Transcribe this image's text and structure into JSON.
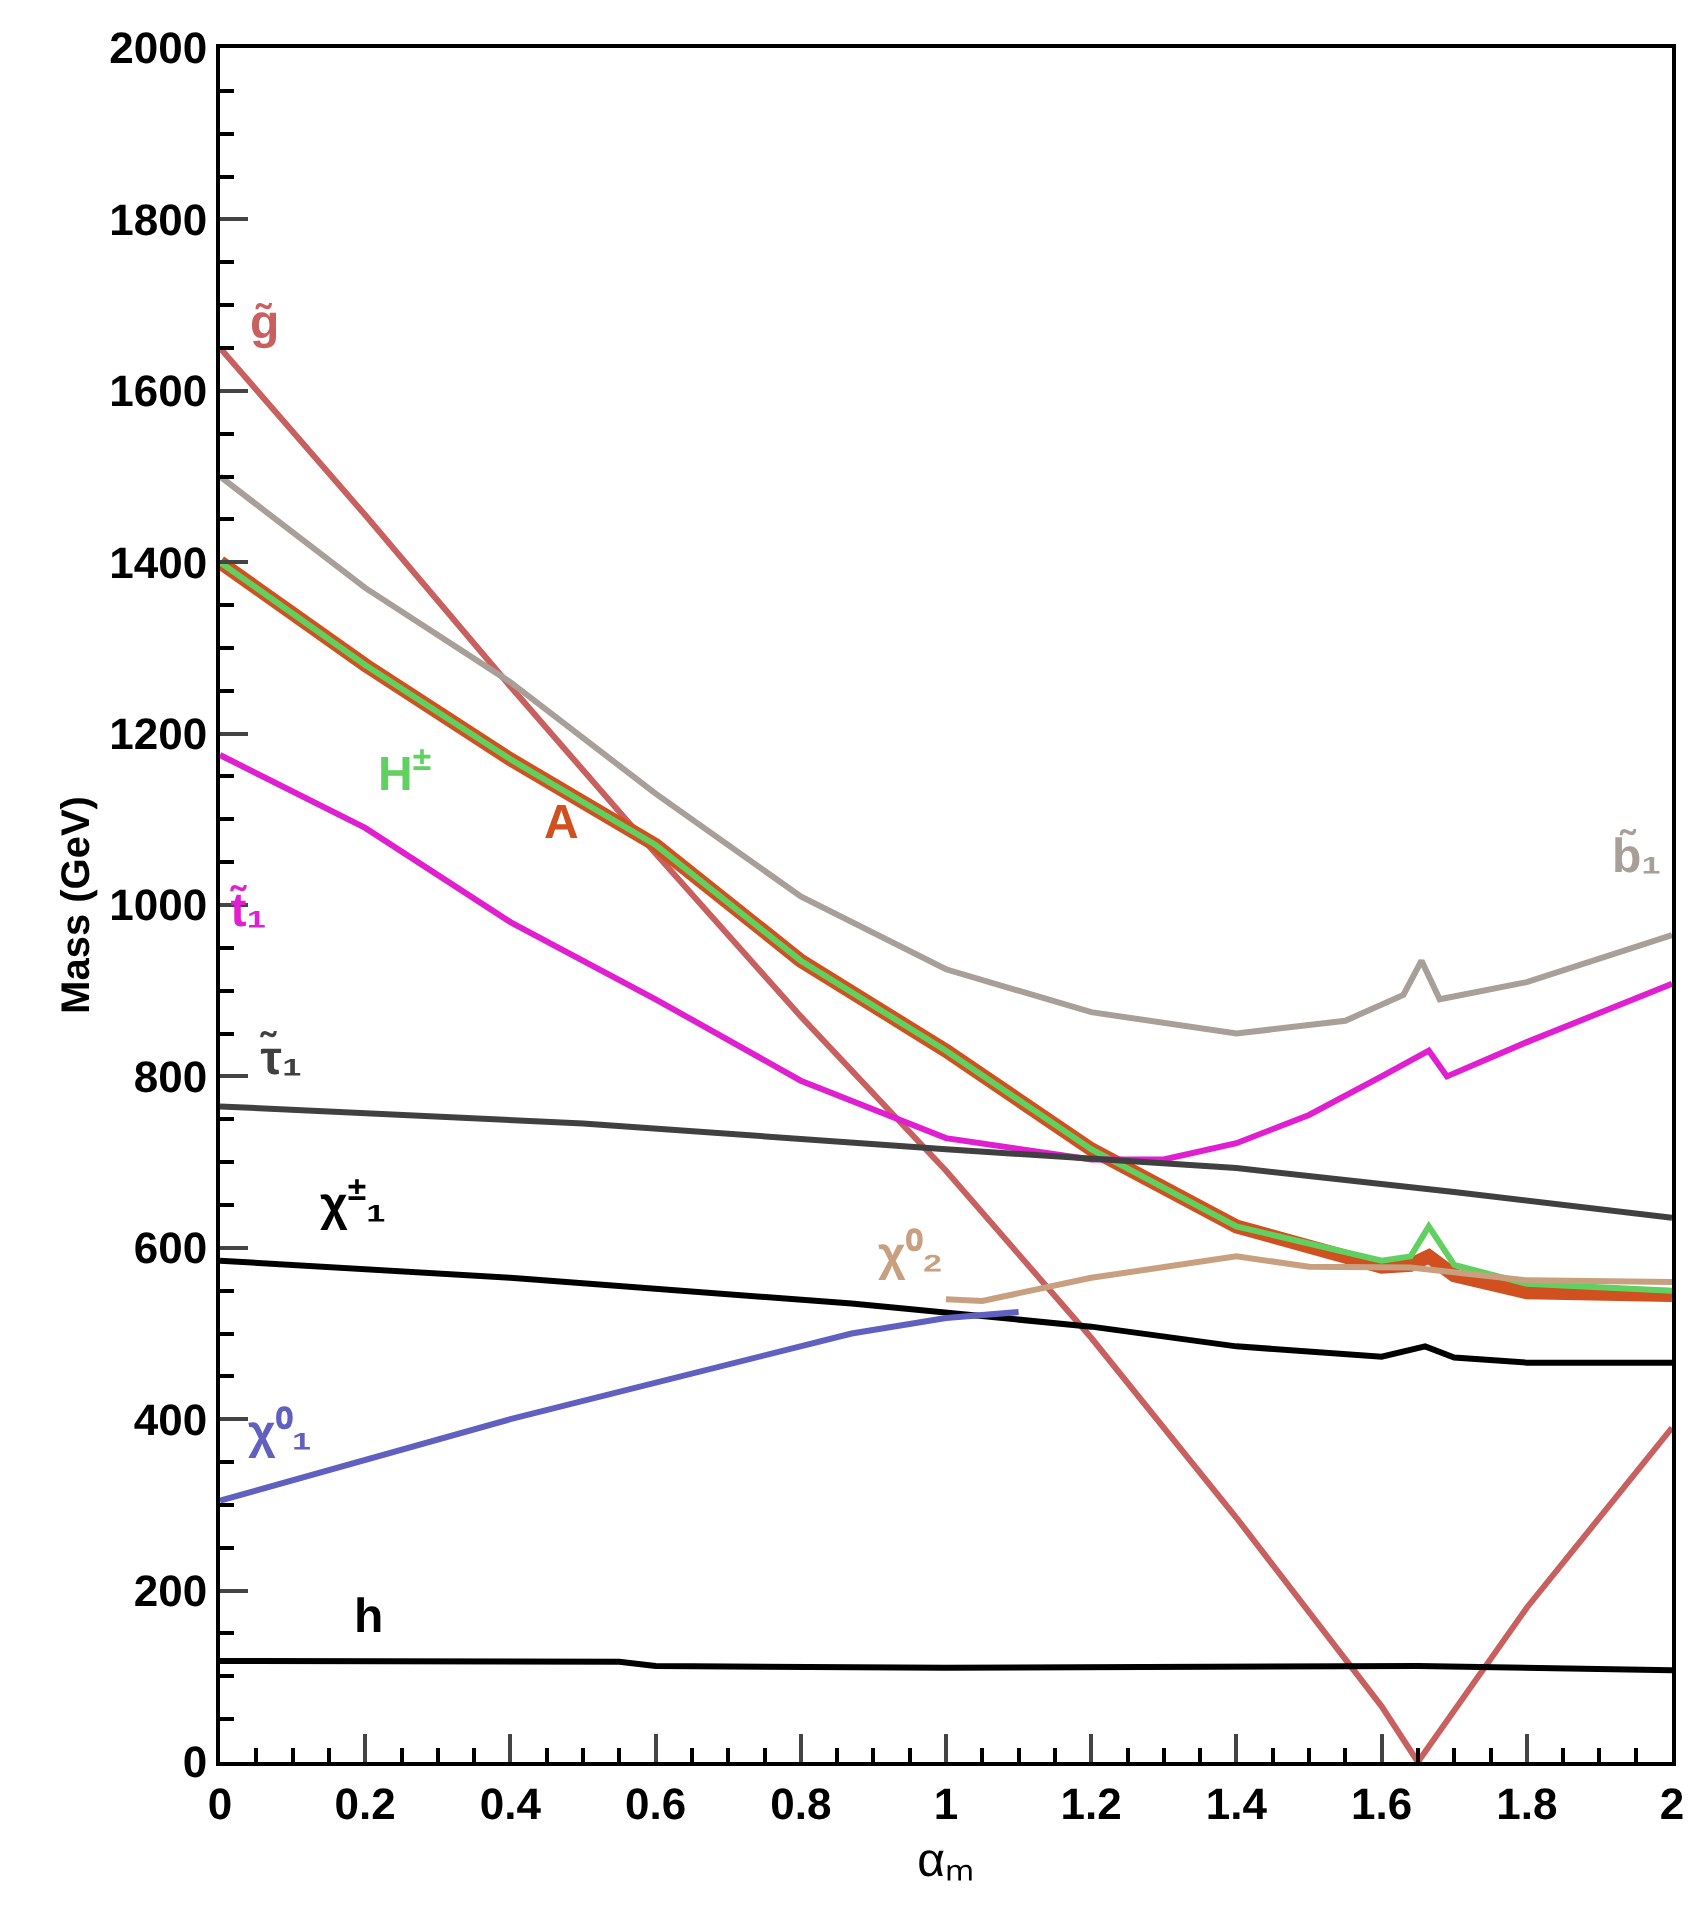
{
  "chart_data": {
    "type": "line",
    "xlabel": "αₘ",
    "ylabel": "Mass (GeV)",
    "xlim": [
      0,
      2
    ],
    "ylim": [
      0,
      2000
    ],
    "xticks": [
      0,
      {
        "value": 0.05,
        "label": null
      },
      {
        "value": 0.1,
        "label": null
      },
      {
        "value": 0.15,
        "label": null
      },
      0.2,
      {
        "value": 0.25,
        "label": null
      },
      {
        "value": 0.3,
        "label": null
      },
      {
        "value": 0.35,
        "label": null
      },
      0.4,
      {
        "value": 0.45,
        "label": null
      },
      {
        "value": 0.5,
        "label": null
      },
      {
        "value": 0.55,
        "label": null
      },
      0.6,
      {
        "value": 0.65,
        "label": null
      },
      {
        "value": 0.7,
        "label": null
      },
      {
        "value": 0.75,
        "label": null
      },
      0.8,
      {
        "value": 0.85,
        "label": null
      },
      {
        "value": 0.9,
        "label": null
      },
      {
        "value": 0.95,
        "label": null
      },
      1,
      {
        "value": 1.05,
        "label": null
      },
      {
        "value": 1.1,
        "label": null
      },
      {
        "value": 1.15,
        "label": null
      },
      1.2,
      {
        "value": 1.25,
        "label": null
      },
      {
        "value": 1.3,
        "label": null
      },
      {
        "value": 1.35,
        "label": null
      },
      1.4,
      {
        "value": 1.45,
        "label": null
      },
      {
        "value": 1.5,
        "label": null
      },
      {
        "value": 1.55,
        "label": null
      },
      1.6,
      {
        "value": 1.65,
        "label": null
      },
      {
        "value": 1.7,
        "label": null
      },
      {
        "value": 1.75,
        "label": null
      },
      1.8,
      {
        "value": 1.85,
        "label": null
      },
      {
        "value": 1.9,
        "label": null
      },
      {
        "value": 1.95,
        "label": null
      },
      2
    ],
    "yticks": [
      0,
      {
        "value": 50,
        "label": null
      },
      {
        "value": 100,
        "label": null
      },
      {
        "value": 150,
        "label": null
      },
      200,
      {
        "value": 250,
        "label": null
      },
      {
        "value": 300,
        "label": null
      },
      {
        "value": 350,
        "label": null
      },
      400,
      {
        "value": 450,
        "label": null
      },
      {
        "value": 500,
        "label": null
      },
      {
        "value": 550,
        "label": null
      },
      600,
      {
        "value": 650,
        "label": null
      },
      {
        "value": 700,
        "label": null
      },
      {
        "value": 750,
        "label": null
      },
      800,
      {
        "value": 850,
        "label": null
      },
      {
        "value": 900,
        "label": null
      },
      {
        "value": 950,
        "label": null
      },
      1000,
      {
        "value": 1050,
        "label": null
      },
      {
        "value": 1100,
        "label": null
      },
      {
        "value": 1150,
        "label": null
      },
      1200,
      {
        "value": 1250,
        "label": null
      },
      {
        "value": 1300,
        "label": null
      },
      {
        "value": 1350,
        "label": null
      },
      1400,
      {
        "value": 1450,
        "label": null
      },
      {
        "value": 1500,
        "label": null
      },
      {
        "value": 1550,
        "label": null
      },
      1600,
      {
        "value": 1650,
        "label": null
      },
      {
        "value": 1700,
        "label": null
      },
      {
        "value": 1750,
        "label": null
      },
      1800,
      {
        "value": 1850,
        "label": null
      },
      {
        "value": 1900,
        "label": null
      },
      {
        "value": 1950,
        "label": null
      },
      2000
    ],
    "legend": false,
    "marker": "none",
    "line_style": "solid",
    "series": [
      {
        "name": "g̃",
        "color": "#c86060",
        "x": [
          0,
          0.2,
          0.4,
          0.6,
          0.8,
          1.0,
          1.2,
          1.4,
          1.6,
          1.65,
          1.8,
          2.0
        ],
        "values": [
          1650,
          1455,
          1255,
          1060,
          870,
          690,
          495,
          285,
          65,
          0,
          180,
          390
        ]
      },
      {
        "name": "b̃₁",
        "color": "#a8a098",
        "x": [
          0,
          0.2,
          0.4,
          0.6,
          0.8,
          1.0,
          1.2,
          1.4,
          1.55,
          1.63,
          1.655,
          1.68,
          1.8,
          2.0
        ],
        "values": [
          1500,
          1370,
          1260,
          1130,
          1010,
          925,
          875,
          850,
          865,
          895,
          935,
          890,
          910,
          965
        ]
      },
      {
        "name": "A",
        "color": "#d05020",
        "x": [
          0,
          0.2,
          0.4,
          0.6,
          0.8,
          1.0,
          1.2,
          1.4,
          1.6,
          1.64,
          1.665,
          1.7,
          1.8,
          2.0
        ],
        "values": [
          1400,
          1280,
          1170,
          1070,
          935,
          830,
          715,
          625,
          578,
          580,
          590,
          568,
          548,
          545
        ]
      },
      {
        "name": "H$^{±}$",
        "color": "#60d060",
        "x": [
          0,
          0.2,
          0.4,
          0.6,
          0.8,
          1.0,
          1.2,
          1.4,
          1.6,
          1.64,
          1.665,
          1.7,
          1.8,
          2.0
        ],
        "values": [
          1400,
          1280,
          1170,
          1070,
          935,
          830,
          715,
          625,
          585,
          590,
          625,
          580,
          558,
          550
        ]
      },
      {
        "name": "t̃₁",
        "color": "#e020d0",
        "x": [
          0,
          0.2,
          0.4,
          0.6,
          0.8,
          1.0,
          1.2,
          1.3,
          1.4,
          1.5,
          1.6,
          1.665,
          1.69,
          1.8,
          2.0
        ],
        "values": [
          1175,
          1090,
          980,
          890,
          795,
          728,
          703,
          703,
          722,
          755,
          800,
          830,
          800,
          840,
          908
        ]
      },
      {
        "name": "τ̃₁",
        "color": "#404040",
        "x": [
          0,
          0.5,
          1.0,
          1.4,
          1.7,
          2.0
        ],
        "values": [
          765,
          745,
          715,
          693,
          665,
          635
        ]
      },
      {
        "name": "χ$^{±}$₁",
        "color": "#000000",
        "x": [
          0,
          0.4,
          0.87,
          1.2,
          1.4,
          1.6,
          1.66,
          1.7,
          1.8,
          2.0
        ],
        "values": [
          585,
          565,
          535,
          508,
          485,
          473,
          485,
          472,
          466,
          466
        ]
      },
      {
        "name": "χ⁰₂",
        "color": "#c8a080",
        "x": [
          1.0,
          1.05,
          1.2,
          1.4,
          1.5,
          1.64,
          1.8,
          2.0
        ],
        "values": [
          540,
          538,
          565,
          590,
          578,
          577,
          562,
          560
        ]
      },
      {
        "name": "χ⁰₁",
        "color": "#6060c0",
        "x": [
          0,
          0.4,
          0.87,
          1.0,
          1.1
        ],
        "values": [
          305,
          400,
          500,
          518,
          525
        ]
      },
      {
        "name": "h",
        "color": "#000000",
        "x": [
          0,
          0.55,
          0.6,
          1.0,
          1.65,
          2.0
        ],
        "values": [
          118,
          117,
          112,
          110,
          112,
          107
        ]
      }
    ]
  }
}
